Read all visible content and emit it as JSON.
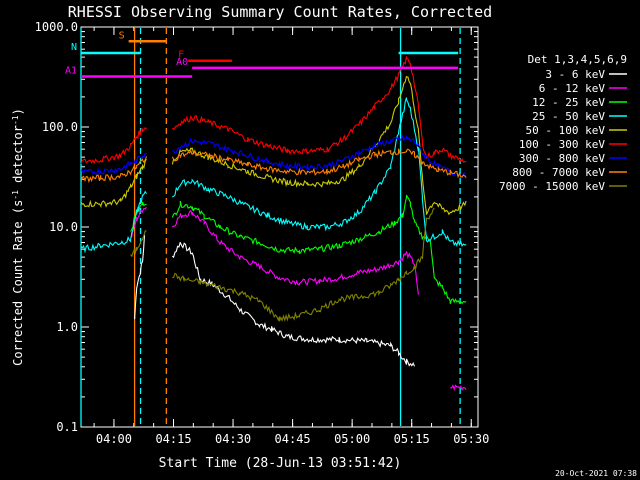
{
  "chart_data": {
    "type": "line",
    "title": "RHESSI Observing Summary Count Rates, Corrected",
    "xlabel": "Start Time (28-Jun-13 03:51:42)",
    "ylabel_main": "Corrected Count Rate (s",
    "ylabel_sup1": "-1",
    "ylabel_mid": " detector",
    "ylabel_sup2": "-1",
    "ylabel_end": ")",
    "yscale": "log",
    "ylim": [
      0.1,
      1000
    ],
    "xlim_minutes": [
      0,
      100
    ],
    "x_unit": "minutes after 03:51:42",
    "y_ticks": [
      {
        "v": 1000,
        "label": "1000.0"
      },
      {
        "v": 100,
        "label": "100.0"
      },
      {
        "v": 10,
        "label": "10.0"
      },
      {
        "v": 1,
        "label": "1.0"
      },
      {
        "v": 0.1,
        "label": "0.1"
      }
    ],
    "x_ticks": [
      {
        "t": 8.3,
        "label": "04:00"
      },
      {
        "t": 23.3,
        "label": "04:15"
      },
      {
        "t": 38.3,
        "label": "04:30"
      },
      {
        "t": 53.3,
        "label": "04:45"
      },
      {
        "t": 68.3,
        "label": "05:00"
      },
      {
        "t": 83.3,
        "label": "05:15"
      },
      {
        "t": 98.3,
        "label": "05:30"
      }
    ],
    "legend_title": "Det 1,3,4,5,6,9",
    "legend_placement": "top-right",
    "footer_date": "20-Oct-2021 07:38",
    "series": [
      {
        "name": "3 - 6 keV",
        "color": "#ffffff",
        "points": [
          [
            0,
            null
          ],
          [
            13.5,
            1.2
          ],
          [
            14,
            2.5
          ],
          [
            15.5,
            4.5
          ],
          [
            16,
            8
          ],
          [
            16.5,
            null
          ],
          [
            22.5,
            null
          ],
          [
            23,
            5
          ],
          [
            25,
            7
          ],
          [
            28,
            5.5
          ],
          [
            30,
            3
          ],
          [
            33,
            2.7
          ],
          [
            37,
            2.0
          ],
          [
            40,
            1.5
          ],
          [
            45,
            1.05
          ],
          [
            48,
            0.95
          ],
          [
            52,
            0.8
          ],
          [
            58,
            0.75
          ],
          [
            65,
            0.75
          ],
          [
            72,
            0.72
          ],
          [
            78,
            0.65
          ],
          [
            80,
            0.55
          ],
          [
            82,
            0.45
          ],
          [
            84,
            0.42
          ],
          [
            85,
            null
          ]
        ]
      },
      {
        "name": "6 - 12 keV",
        "color": "#ff00ff",
        "points": [
          [
            0,
            null
          ],
          [
            12.5,
            7.5
          ],
          [
            14,
            12
          ],
          [
            15.5,
            15
          ],
          [
            16.5,
            16
          ],
          [
            17,
            null
          ],
          [
            22.5,
            null
          ],
          [
            23,
            10
          ],
          [
            25,
            13
          ],
          [
            28,
            14
          ],
          [
            31,
            11
          ],
          [
            35,
            7
          ],
          [
            40,
            5
          ],
          [
            45,
            4.0
          ],
          [
            50,
            3.1
          ],
          [
            55,
            2.8
          ],
          [
            60,
            2.9
          ],
          [
            65,
            3.1
          ],
          [
            70,
            3.5
          ],
          [
            75,
            3.8
          ],
          [
            80,
            4.5
          ],
          [
            82,
            5.5
          ],
          [
            84,
            4.3
          ],
          [
            85,
            2.0
          ],
          [
            87,
            null
          ],
          [
            92.5,
            null
          ],
          [
            93,
            0.25
          ],
          [
            97,
            0.25
          ],
          [
            97.5,
            null
          ]
        ]
      },
      {
        "name": "12 - 25 keV",
        "color": "#00ff00",
        "points": [
          [
            0,
            null
          ],
          [
            12.5,
            9
          ],
          [
            14,
            14
          ],
          [
            15.5,
            17
          ],
          [
            16.5,
            18
          ],
          [
            17,
            null
          ],
          [
            22.5,
            null
          ],
          [
            23,
            12
          ],
          [
            25,
            17
          ],
          [
            28,
            16
          ],
          [
            31,
            13
          ],
          [
            35,
            10
          ],
          [
            40,
            8
          ],
          [
            45,
            7
          ],
          [
            50,
            5.9
          ],
          [
            55,
            5.8
          ],
          [
            60,
            6.0
          ],
          [
            65,
            6.5
          ],
          [
            70,
            7.5
          ],
          [
            75,
            9
          ],
          [
            79,
            11
          ],
          [
            81,
            13
          ],
          [
            82,
            20
          ],
          [
            83,
            17
          ],
          [
            84,
            11
          ],
          [
            86,
            8
          ],
          [
            88,
            7.5
          ],
          [
            89,
            3
          ],
          [
            91,
            2.5
          ],
          [
            93,
            1.8
          ],
          [
            97,
            1.8
          ]
        ]
      },
      {
        "name": "25 - 50 keV",
        "color": "#00ffff",
        "points": [
          [
            0,
            6.0
          ],
          [
            5,
            6.5
          ],
          [
            10,
            7.0
          ],
          [
            12.5,
            7.5
          ],
          [
            14,
            14
          ],
          [
            15.5,
            20
          ],
          [
            16.5,
            22
          ],
          [
            17,
            null
          ],
          [
            22.5,
            null
          ],
          [
            23,
            20
          ],
          [
            25,
            27
          ],
          [
            28,
            29
          ],
          [
            32,
            24
          ],
          [
            37,
            20
          ],
          [
            42,
            16
          ],
          [
            47,
            13
          ],
          [
            52,
            11
          ],
          [
            57,
            10
          ],
          [
            62,
            10
          ],
          [
            66,
            11
          ],
          [
            70,
            14
          ],
          [
            74,
            22
          ],
          [
            78,
            40
          ],
          [
            80,
            90
          ],
          [
            82,
            190
          ],
          [
            83,
            150
          ],
          [
            85,
            60
          ],
          [
            86,
            20
          ],
          [
            87,
            7.5
          ],
          [
            89,
            8
          ],
          [
            91,
            9
          ],
          [
            93,
            7
          ],
          [
            97,
            6.5
          ]
        ]
      },
      {
        "name": "50 - 100 keV",
        "color": "#cccc00",
        "points": [
          [
            0,
            17
          ],
          [
            5,
            17
          ],
          [
            10,
            18
          ],
          [
            12.5,
            25
          ],
          [
            14,
            32
          ],
          [
            15.5,
            40
          ],
          [
            16.5,
            46
          ],
          [
            17,
            null
          ],
          [
            22.5,
            null
          ],
          [
            23,
            45
          ],
          [
            25,
            56
          ],
          [
            28,
            58
          ],
          [
            32,
            50
          ],
          [
            37,
            42
          ],
          [
            42,
            36
          ],
          [
            47,
            31
          ],
          [
            52,
            28
          ],
          [
            57,
            27
          ],
          [
            62,
            27
          ],
          [
            66,
            30
          ],
          [
            70,
            40
          ],
          [
            74,
            65
          ],
          [
            78,
            110
          ],
          [
            80,
            180
          ],
          [
            82,
            330
          ],
          [
            83,
            270
          ],
          [
            85,
            90
          ],
          [
            86,
            30
          ],
          [
            87,
            14
          ],
          [
            89,
            18
          ],
          [
            91,
            15
          ],
          [
            93,
            14
          ],
          [
            97,
            17
          ]
        ]
      },
      {
        "name": "100 - 300 keV",
        "color": "#ff0000",
        "points": [
          [
            0,
            45
          ],
          [
            5,
            47
          ],
          [
            10,
            52
          ],
          [
            12.5,
            65
          ],
          [
            14,
            80
          ],
          [
            15.5,
            95
          ],
          [
            16.5,
            100
          ],
          [
            17,
            null
          ],
          [
            22.5,
            null
          ],
          [
            23,
            95
          ],
          [
            25,
            110
          ],
          [
            28,
            125
          ],
          [
            32,
            112
          ],
          [
            37,
            95
          ],
          [
            42,
            75
          ],
          [
            47,
            65
          ],
          [
            52,
            58
          ],
          [
            57,
            57
          ],
          [
            62,
            60
          ],
          [
            66,
            75
          ],
          [
            70,
            105
          ],
          [
            74,
            160
          ],
          [
            78,
            240
          ],
          [
            80,
            330
          ],
          [
            82,
            480
          ],
          [
            83,
            440
          ],
          [
            85,
            160
          ],
          [
            86,
            70
          ],
          [
            87,
            50
          ],
          [
            89,
            55
          ],
          [
            91,
            60
          ],
          [
            93,
            52
          ],
          [
            97,
            45
          ]
        ]
      },
      {
        "name": "300 - 800 keV",
        "color": "#0000ff",
        "points": [
          [
            0,
            35
          ],
          [
            5,
            36
          ],
          [
            10,
            38
          ],
          [
            12.5,
            43
          ],
          [
            14,
            46
          ],
          [
            15.5,
            52
          ],
          [
            16.5,
            56
          ],
          [
            17,
            null
          ],
          [
            22.5,
            null
          ],
          [
            23,
            55
          ],
          [
            25,
            64
          ],
          [
            28,
            72
          ],
          [
            32,
            69
          ],
          [
            37,
            60
          ],
          [
            42,
            52
          ],
          [
            47,
            45
          ],
          [
            52,
            41
          ],
          [
            57,
            40
          ],
          [
            62,
            41
          ],
          [
            66,
            46
          ],
          [
            70,
            55
          ],
          [
            74,
            65
          ],
          [
            78,
            72
          ],
          [
            80,
            75
          ],
          [
            82,
            77
          ],
          [
            84,
            72
          ],
          [
            86,
            55
          ],
          [
            88,
            45
          ],
          [
            90,
            40
          ],
          [
            93,
            36
          ],
          [
            97,
            32
          ]
        ]
      },
      {
        "name": "800 - 7000 keV",
        "color": "#ff8000",
        "points": [
          [
            0,
            30
          ],
          [
            5,
            31
          ],
          [
            10,
            32
          ],
          [
            12.5,
            36
          ],
          [
            14,
            40
          ],
          [
            15.5,
            46
          ],
          [
            16.5,
            50
          ],
          [
            17,
            null
          ],
          [
            22.5,
            null
          ],
          [
            23,
            47
          ],
          [
            25,
            52
          ],
          [
            28,
            55
          ],
          [
            32,
            52
          ],
          [
            37,
            47
          ],
          [
            42,
            42
          ],
          [
            47,
            38
          ],
          [
            52,
            36
          ],
          [
            57,
            35
          ],
          [
            62,
            36
          ],
          [
            66,
            40
          ],
          [
            70,
            47
          ],
          [
            74,
            53
          ],
          [
            78,
            56
          ],
          [
            80,
            57
          ],
          [
            82,
            57
          ],
          [
            84,
            53
          ],
          [
            86,
            45
          ],
          [
            88,
            40
          ],
          [
            90,
            37
          ],
          [
            93,
            35
          ],
          [
            97,
            32
          ]
        ]
      },
      {
        "name": "7000 - 15000 keV",
        "color": "#808000",
        "points": [
          [
            0,
            null
          ],
          [
            12.5,
            5
          ],
          [
            14,
            6
          ],
          [
            15.5,
            8
          ],
          [
            16.5,
            9
          ],
          [
            17,
            null
          ],
          [
            22.5,
            null
          ],
          [
            23,
            3.3
          ],
          [
            26,
            3.0
          ],
          [
            30,
            2.8
          ],
          [
            35,
            2.5
          ],
          [
            40,
            2.2
          ],
          [
            45,
            1.8
          ],
          [
            50,
            1.2
          ],
          [
            55,
            1.3
          ],
          [
            60,
            1.5
          ],
          [
            65,
            1.9
          ],
          [
            70,
            2.0
          ],
          [
            75,
            2.2
          ],
          [
            78,
            2.6
          ],
          [
            80,
            3.0
          ],
          [
            82,
            3.5
          ],
          [
            84,
            4.0
          ],
          [
            86,
            5.0
          ],
          [
            87,
            12
          ],
          [
            89,
            15
          ],
          [
            90,
            null
          ]
        ]
      }
    ],
    "flag_bars": [
      {
        "label": "S",
        "color": "#ff8000",
        "y": 720,
        "t0": 12.0,
        "t1": 21.5
      },
      {
        "label": "N",
        "color": "#00ffff",
        "y": 550,
        "t0": 0.0,
        "t1": 15.0
      },
      {
        "label": "N",
        "color": "#00ffff",
        "y": 550,
        "t0": 80.0,
        "t1": 95.0
      },
      {
        "label": "F",
        "color": "#ff0000",
        "y": 460,
        "t0": 27.0,
        "t1": 38.0
      },
      {
        "label": "A0",
        "color": "#ff00ff",
        "y": 390,
        "t0": 28.0,
        "t1": 95.0
      },
      {
        "label": "A1",
        "color": "#ff00ff",
        "y": 320,
        "t0": 0.0,
        "t1": 28.0
      }
    ],
    "vertical_markers": [
      {
        "t": 13.5,
        "color": "#ff8000",
        "style": "solid"
      },
      {
        "t": 15.0,
        "color": "#00ffff",
        "style": "dashed"
      },
      {
        "t": 21.5,
        "color": "#ff8000",
        "style": "dashed"
      },
      {
        "t": 80.5,
        "color": "#00ffff",
        "style": "solid"
      },
      {
        "t": 95.5,
        "color": "#00ffff",
        "style": "dashed"
      },
      {
        "t": 0.0,
        "color": "#00ffff",
        "style": "solid"
      }
    ]
  }
}
